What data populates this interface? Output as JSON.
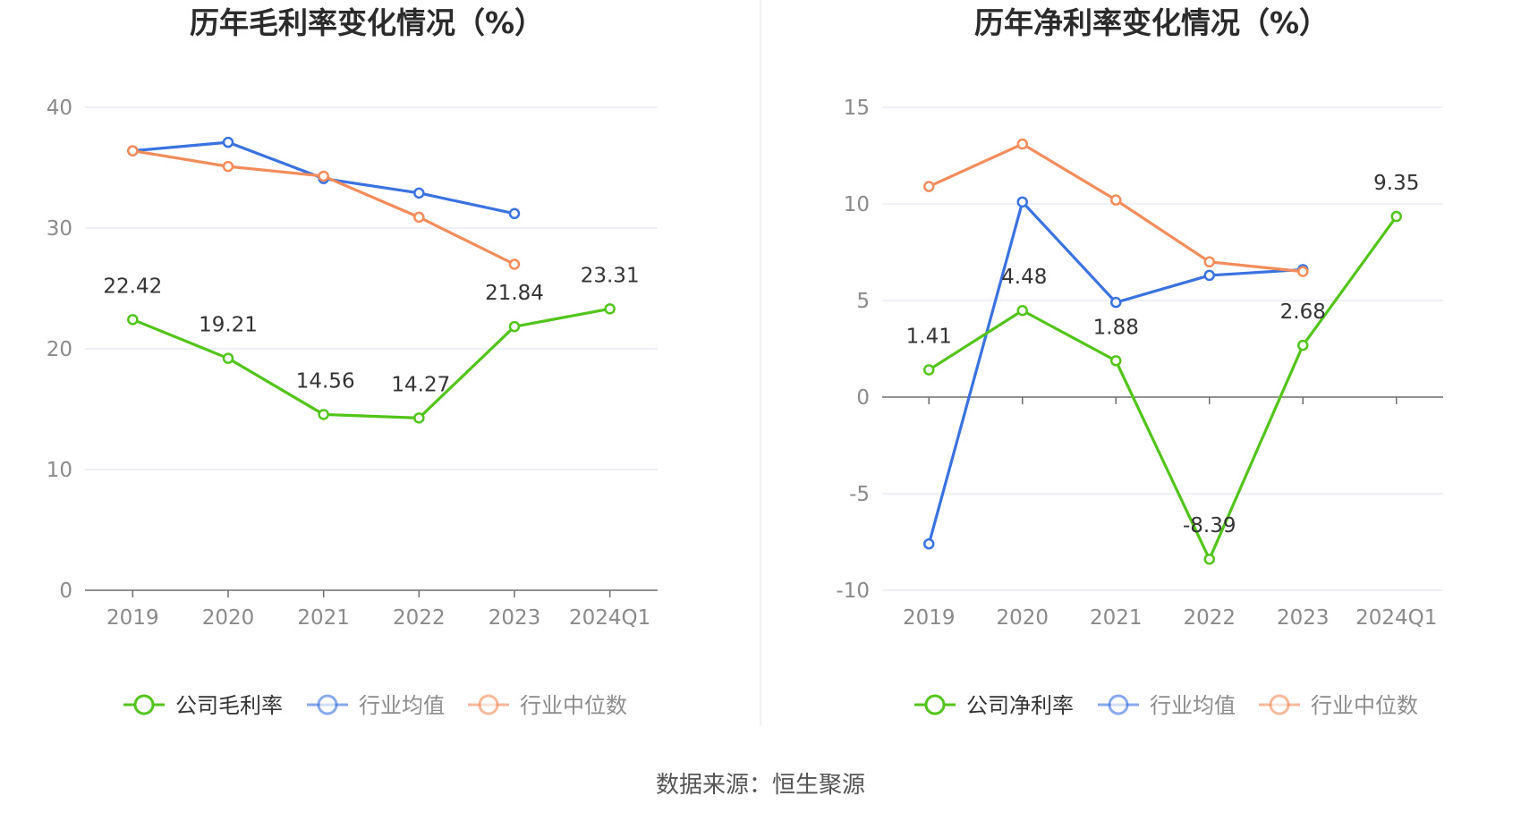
{
  "source_text": "数据来源：恒生聚源",
  "chart_data": [
    {
      "type": "line",
      "title": "历年毛利率变化情况（%）",
      "categories": [
        "2019",
        "2020",
        "2021",
        "2022",
        "2023",
        "2024Q1"
      ],
      "ylim": [
        0,
        40
      ],
      "yticks": [
        0,
        10,
        20,
        30,
        40
      ],
      "series": [
        {
          "name": "公司毛利率",
          "color": "#52c41a",
          "labels": true,
          "values": [
            22.42,
            19.21,
            14.56,
            14.27,
            21.84,
            23.31
          ],
          "value_labels": [
            "22.42",
            "19.21",
            "14.56",
            "14.27",
            "21.84",
            "23.31"
          ]
        },
        {
          "name": "行业均值",
          "color": "#3a72e0",
          "labels": false,
          "values": [
            36.4,
            37.1,
            34.1,
            32.9,
            31.2,
            null
          ]
        },
        {
          "name": "行业中位数",
          "color": "#f28c5a",
          "labels": false,
          "values": [
            36.4,
            35.1,
            34.3,
            30.9,
            27.0,
            null
          ]
        }
      ]
    },
    {
      "type": "line",
      "title": "历年净利率变化情况（%）",
      "categories": [
        "2019",
        "2020",
        "2021",
        "2022",
        "2023",
        "2024Q1"
      ],
      "ylim": [
        -10,
        15
      ],
      "yticks": [
        -10,
        -5,
        0,
        5,
        10,
        15
      ],
      "series": [
        {
          "name": "公司净利率",
          "color": "#52c41a",
          "labels": true,
          "values": [
            1.41,
            4.48,
            1.88,
            -8.39,
            2.68,
            9.35
          ],
          "value_labels": [
            "1.41",
            "4.48",
            "1.88",
            "-8.39",
            "2.68",
            "9.35"
          ]
        },
        {
          "name": "行业均值",
          "color": "#3a72e0",
          "labels": false,
          "values": [
            -7.6,
            10.1,
            4.9,
            6.3,
            6.6,
            null
          ]
        },
        {
          "name": "行业中位数",
          "color": "#f28c5a",
          "labels": false,
          "values": [
            10.9,
            13.1,
            10.2,
            7.0,
            6.5,
            null
          ]
        }
      ]
    }
  ]
}
